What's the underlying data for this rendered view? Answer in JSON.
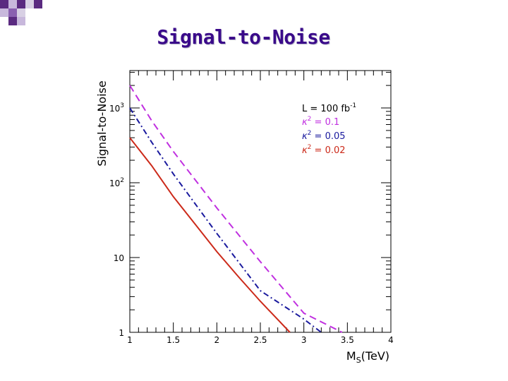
{
  "slide": {
    "title": "Signal-to-Noise"
  },
  "chart_data": {
    "type": "line",
    "title": "Signal-to-Noise",
    "xlabel": "M_S(TeV)",
    "ylabel": "Signal-to-Noise",
    "xlim": [
      1,
      4
    ],
    "ylim": [
      1,
      3000
    ],
    "yscale": "log",
    "x_ticks": [
      {
        "value": 1,
        "label": "1"
      },
      {
        "value": 1.5,
        "label": "1.5"
      },
      {
        "value": 2,
        "label": "2"
      },
      {
        "value": 2.5,
        "label": "2.5"
      },
      {
        "value": 3,
        "label": "3"
      },
      {
        "value": 3.5,
        "label": "3.5"
      },
      {
        "value": 4,
        "label": "4"
      }
    ],
    "y_ticks": [
      {
        "value": 1,
        "label": "1",
        "exp": ""
      },
      {
        "value": 10,
        "label": "10",
        "exp": ""
      },
      {
        "value": 100,
        "label": "10",
        "exp": "2"
      },
      {
        "value": 1000,
        "label": "10",
        "exp": "3"
      }
    ],
    "legend": {
      "header_prefix": "L = 100 fb",
      "header_exp": "-1",
      "placement": "top-right"
    },
    "series": [
      {
        "name": "κ² = 0.1",
        "symbol": "κ",
        "exp": "2",
        "eq": " = 0.1",
        "color": "#c030e0",
        "style": "dash",
        "x": [
          1,
          1.25,
          1.5,
          2,
          2.5,
          3,
          3.44
        ],
        "values": [
          2000,
          680,
          262,
          46,
          8.8,
          1.8,
          1
        ]
      },
      {
        "name": "κ² = 0.05",
        "symbol": "κ",
        "exp": "2",
        "eq": " = 0.05",
        "color": "#1a1a9e",
        "style": "dashdot",
        "x": [
          1,
          1.25,
          1.5,
          2,
          2.5,
          3,
          3.2
        ],
        "values": [
          1000,
          350,
          131,
          21,
          3.6,
          1.5,
          1
        ]
      },
      {
        "name": "κ² = 0.02",
        "symbol": "κ",
        "exp": "2",
        "eq": " = 0.02",
        "color": "#cc2a1a",
        "style": "solid",
        "x": [
          1,
          1.25,
          1.5,
          1.75,
          2,
          2.25,
          2.5,
          2.84
        ],
        "values": [
          400,
          170,
          65,
          28,
          12,
          5.5,
          2.6,
          1
        ]
      }
    ]
  }
}
